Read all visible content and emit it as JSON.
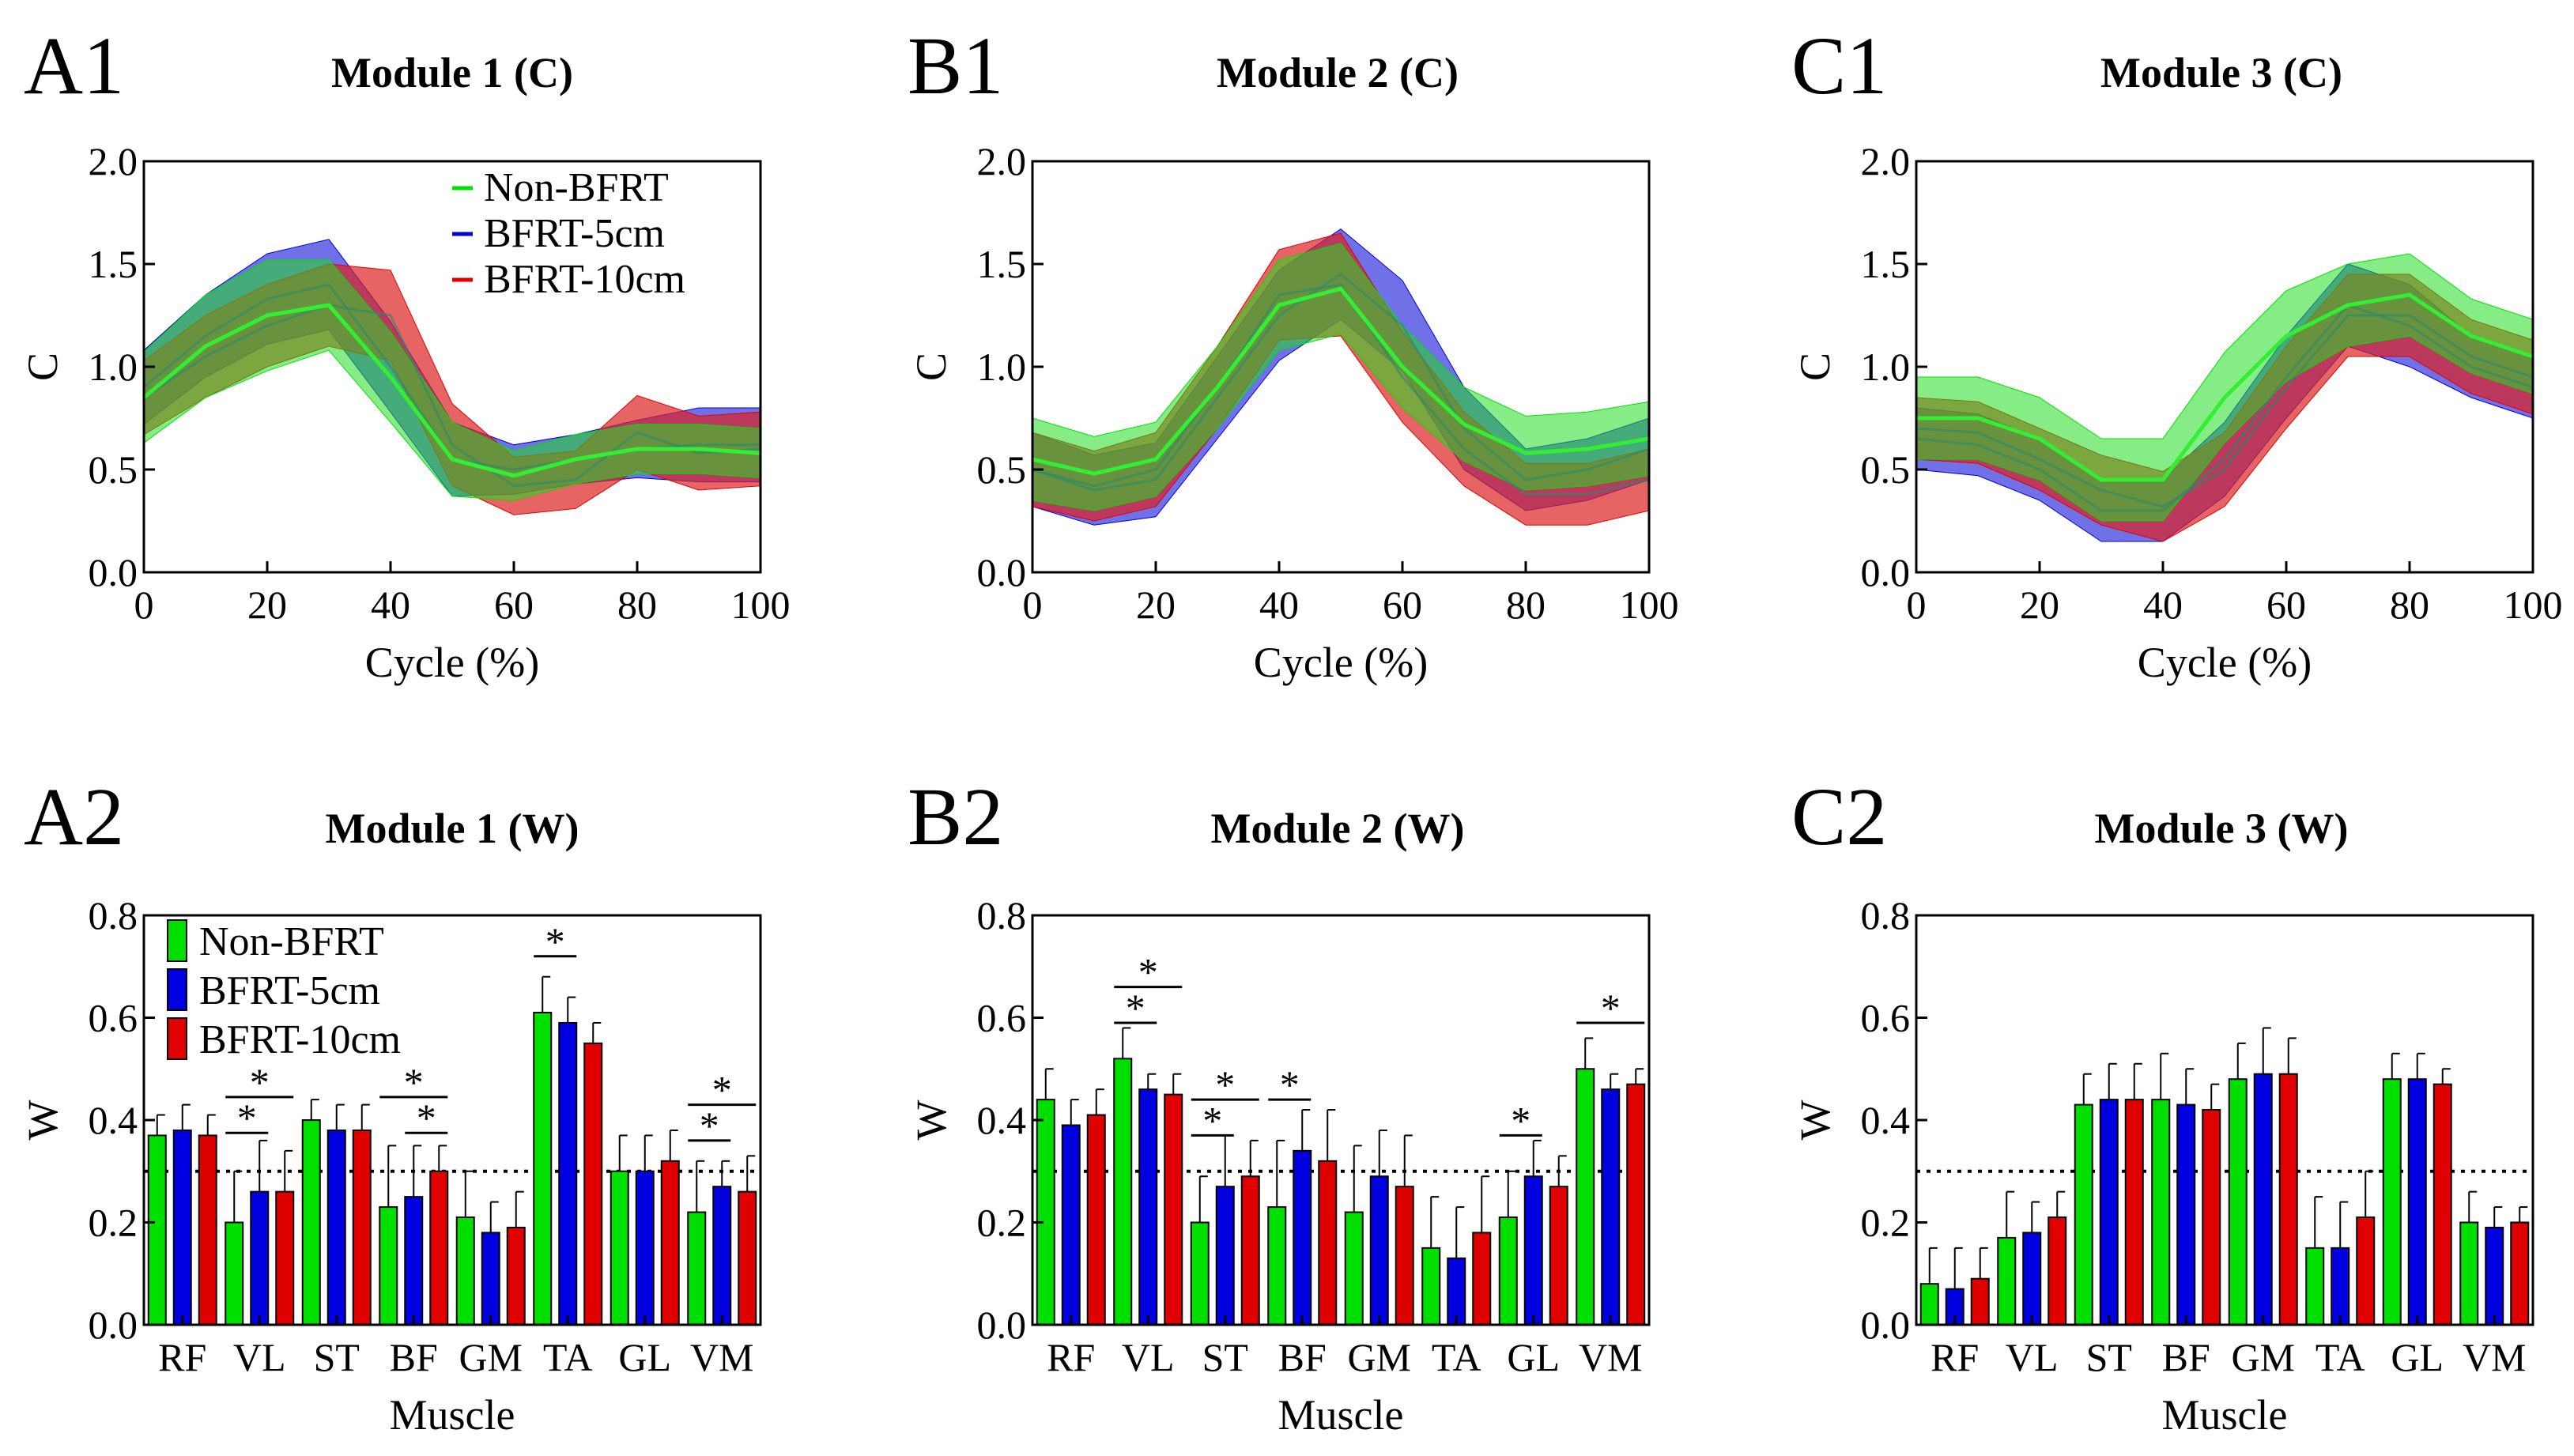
{
  "panels": [
    {
      "id": "A1",
      "letter": "A1",
      "title": "Module 1 (C)",
      "type": "line",
      "xlabel": "Cycle (%)",
      "ylabel": "C",
      "xlim": [
        0,
        100
      ],
      "ylim": [
        0,
        2
      ],
      "xticks": [
        "0",
        "20",
        "40",
        "60",
        "80",
        "100"
      ],
      "yticks": [
        "0.0",
        "0.5",
        "1.0",
        "1.5",
        "2.0"
      ],
      "legend": [
        "Non-BFRT",
        "BFRT-5cm",
        "BFRT-10cm"
      ],
      "x": [
        0,
        10,
        20,
        30,
        40,
        50,
        60,
        70,
        80,
        90,
        100
      ],
      "series": [
        {
          "name": "BFRT-5cm",
          "mean": [
            0.9,
            1.15,
            1.33,
            1.4,
            1.0,
            0.55,
            0.5,
            0.55,
            0.6,
            0.62,
            0.62
          ],
          "sd": [
            0.18,
            0.2,
            0.22,
            0.22,
            0.22,
            0.18,
            0.12,
            0.12,
            0.14,
            0.18,
            0.18
          ]
        },
        {
          "name": "BFRT-10cm",
          "mean": [
            0.85,
            1.05,
            1.2,
            1.3,
            1.25,
            0.62,
            0.42,
            0.45,
            0.68,
            0.58,
            0.6
          ],
          "sd": [
            0.18,
            0.2,
            0.2,
            0.2,
            0.22,
            0.2,
            0.14,
            0.14,
            0.18,
            0.18,
            0.18
          ]
        },
        {
          "name": "Non-BFRT",
          "mean": [
            0.85,
            1.1,
            1.25,
            1.3,
            0.95,
            0.55,
            0.47,
            0.55,
            0.6,
            0.6,
            0.58
          ],
          "sd": [
            0.22,
            0.25,
            0.27,
            0.22,
            0.22,
            0.18,
            0.12,
            0.12,
            0.12,
            0.12,
            0.12
          ]
        }
      ]
    },
    {
      "id": "B1",
      "letter": "B1",
      "title": "Module 2 (C)",
      "type": "line",
      "xlabel": "Cycle (%)",
      "ylabel": "C",
      "xlim": [
        0,
        100
      ],
      "ylim": [
        0,
        2
      ],
      "xticks": [
        "0",
        "20",
        "40",
        "60",
        "80",
        "100"
      ],
      "yticks": [
        "0.0",
        "0.5",
        "1.0",
        "1.5",
        "2.0"
      ],
      "x": [
        0,
        10,
        20,
        30,
        40,
        50,
        60,
        70,
        80,
        90,
        100
      ],
      "series": [
        {
          "name": "BFRT-5cm",
          "mean": [
            0.5,
            0.4,
            0.45,
            0.85,
            1.25,
            1.45,
            1.2,
            0.7,
            0.45,
            0.5,
            0.6
          ],
          "sd": [
            0.18,
            0.17,
            0.18,
            0.2,
            0.22,
            0.22,
            0.22,
            0.2,
            0.15,
            0.15,
            0.15
          ]
        },
        {
          "name": "BFRT-10cm",
          "mean": [
            0.5,
            0.42,
            0.5,
            0.9,
            1.35,
            1.4,
            0.95,
            0.6,
            0.38,
            0.38,
            0.45
          ],
          "sd": [
            0.18,
            0.17,
            0.18,
            0.2,
            0.22,
            0.25,
            0.22,
            0.18,
            0.15,
            0.15,
            0.15
          ]
        },
        {
          "name": "Non-BFRT",
          "mean": [
            0.55,
            0.48,
            0.55,
            0.9,
            1.3,
            1.38,
            1.0,
            0.72,
            0.58,
            0.6,
            0.65
          ],
          "sd": [
            0.2,
            0.18,
            0.18,
            0.2,
            0.22,
            0.22,
            0.2,
            0.18,
            0.18,
            0.18,
            0.18
          ]
        }
      ]
    },
    {
      "id": "C1",
      "letter": "C1",
      "title": "Module 3 (C)",
      "type": "line",
      "xlabel": "Cycle (%)",
      "ylabel": "C",
      "xlim": [
        0,
        100
      ],
      "ylim": [
        0,
        2
      ],
      "xticks": [
        "0",
        "20",
        "40",
        "60",
        "80",
        "100"
      ],
      "yticks": [
        "0.0",
        "0.5",
        "1.0",
        "1.5",
        "2.0"
      ],
      "x": [
        0,
        10,
        20,
        30,
        40,
        50,
        60,
        70,
        80,
        90,
        100
      ],
      "series": [
        {
          "name": "BFRT-5cm",
          "mean": [
            0.65,
            0.62,
            0.5,
            0.3,
            0.3,
            0.55,
            0.95,
            1.3,
            1.2,
            1.0,
            0.9
          ],
          "sd": [
            0.15,
            0.15,
            0.15,
            0.15,
            0.15,
            0.18,
            0.2,
            0.2,
            0.2,
            0.15,
            0.15
          ]
        },
        {
          "name": "BFRT-10cm",
          "mean": [
            0.7,
            0.68,
            0.55,
            0.4,
            0.32,
            0.5,
            0.9,
            1.25,
            1.25,
            1.05,
            0.95
          ],
          "sd": [
            0.15,
            0.15,
            0.15,
            0.17,
            0.17,
            0.18,
            0.2,
            0.2,
            0.2,
            0.18,
            0.18
          ]
        },
        {
          "name": "Non-BFRT",
          "mean": [
            0.75,
            0.75,
            0.65,
            0.45,
            0.45,
            0.85,
            1.15,
            1.3,
            1.35,
            1.15,
            1.05
          ],
          "sd": [
            0.2,
            0.2,
            0.2,
            0.2,
            0.2,
            0.22,
            0.22,
            0.2,
            0.2,
            0.18,
            0.18
          ]
        }
      ]
    },
    {
      "id": "A2",
      "letter": "A2",
      "title": "Module 1 (W)",
      "type": "bar",
      "xlabel": "Muscle",
      "ylabel": "W",
      "ylim": [
        0,
        0.8
      ],
      "threshold": 0.3,
      "yticks": [
        "0.0",
        "0.2",
        "0.4",
        "0.6",
        "0.8"
      ],
      "legend": [
        "Non-BFRT",
        "BFRT-5cm",
        "BFRT-10cm"
      ],
      "categories": [
        "RF",
        "VL",
        "ST",
        "BF",
        "GM",
        "TA",
        "GL",
        "VM"
      ],
      "series": [
        {
          "name": "Non-BFRT",
          "values": [
            0.37,
            0.2,
            0.4,
            0.23,
            0.21,
            0.61,
            0.3,
            0.22
          ],
          "err": [
            0.04,
            0.1,
            0.04,
            0.12,
            0.09,
            0.07,
            0.07,
            0.1
          ]
        },
        {
          "name": "BFRT-5cm",
          "values": [
            0.38,
            0.26,
            0.38,
            0.25,
            0.18,
            0.59,
            0.3,
            0.27
          ],
          "err": [
            0.05,
            0.1,
            0.05,
            0.1,
            0.06,
            0.05,
            0.07,
            0.05
          ]
        },
        {
          "name": "BFRT-10cm",
          "values": [
            0.37,
            0.26,
            0.38,
            0.3,
            0.19,
            0.55,
            0.32,
            0.26
          ],
          "err": [
            0.04,
            0.08,
            0.05,
            0.05,
            0.07,
            0.04,
            0.06,
            0.07
          ]
        }
      ],
      "sig": [
        {
          "cat": 1,
          "from": 0,
          "to": 2,
          "level": 0.445
        },
        {
          "cat": 1,
          "from": 0,
          "to": 1,
          "level": 0.375
        },
        {
          "cat": 3,
          "from": 0,
          "to": 2,
          "level": 0.445
        },
        {
          "cat": 3,
          "from": 1,
          "to": 2,
          "level": 0.375
        },
        {
          "cat": 5,
          "from": 0,
          "to": 1,
          "level": 0.72
        },
        {
          "cat": 7,
          "from": 0,
          "to": 2,
          "level": 0.43
        },
        {
          "cat": 7,
          "from": 0,
          "to": 1,
          "level": 0.36
        }
      ],
      "star": "*"
    },
    {
      "id": "B2",
      "letter": "B2",
      "title": "Module 2 (W)",
      "type": "bar",
      "xlabel": "Muscle",
      "ylabel": "W",
      "ylim": [
        0,
        0.8
      ],
      "threshold": 0.3,
      "yticks": [
        "0.0",
        "0.2",
        "0.4",
        "0.6",
        "0.8"
      ],
      "categories": [
        "RF",
        "VL",
        "ST",
        "BF",
        "GM",
        "TA",
        "GL",
        "VM"
      ],
      "series": [
        {
          "name": "Non-BFRT",
          "values": [
            0.44,
            0.52,
            0.2,
            0.23,
            0.22,
            0.15,
            0.21,
            0.5
          ],
          "err": [
            0.06,
            0.06,
            0.09,
            0.13,
            0.13,
            0.1,
            0.09,
            0.06
          ]
        },
        {
          "name": "BFRT-5cm",
          "values": [
            0.39,
            0.46,
            0.27,
            0.34,
            0.29,
            0.13,
            0.29,
            0.46
          ],
          "err": [
            0.05,
            0.03,
            0.1,
            0.08,
            0.09,
            0.1,
            0.07,
            0.03
          ]
        },
        {
          "name": "BFRT-10cm",
          "values": [
            0.41,
            0.45,
            0.29,
            0.32,
            0.27,
            0.18,
            0.27,
            0.47
          ],
          "err": [
            0.05,
            0.04,
            0.07,
            0.1,
            0.1,
            0.11,
            0.06,
            0.03
          ]
        }
      ],
      "sig": [
        {
          "cat": 1,
          "from": 0,
          "to": 2,
          "level": 0.66
        },
        {
          "cat": 1,
          "from": 0,
          "to": 1,
          "level": 0.59
        },
        {
          "cat": 2,
          "from": 0,
          "to": 2,
          "level": 0.44
        },
        {
          "cat": 2,
          "from": 0,
          "to": 1,
          "level": 0.37
        },
        {
          "cat": 3,
          "from": 0,
          "to": 1,
          "level": 0.44
        },
        {
          "cat": 6,
          "from": 0,
          "to": 1,
          "level": 0.37
        },
        {
          "cat": 7,
          "from": 0,
          "to": 2,
          "level": 0.59
        }
      ],
      "star": "*"
    },
    {
      "id": "C2",
      "letter": "C2",
      "title": "Module 3 (W)",
      "type": "bar",
      "xlabel": "Muscle",
      "ylabel": "W",
      "ylim": [
        0,
        0.8
      ],
      "threshold": 0.3,
      "yticks": [
        "0.0",
        "0.2",
        "0.4",
        "0.6",
        "0.8"
      ],
      "categories": [
        "RF",
        "VL",
        "ST",
        "BF",
        "GM",
        "TA",
        "GL",
        "VM"
      ],
      "series": [
        {
          "name": "Non-BFRT",
          "values": [
            0.08,
            0.17,
            0.43,
            0.44,
            0.48,
            0.15,
            0.48,
            0.2
          ],
          "err": [
            0.07,
            0.09,
            0.06,
            0.09,
            0.07,
            0.1,
            0.05,
            0.06
          ]
        },
        {
          "name": "BFRT-5cm",
          "values": [
            0.07,
            0.18,
            0.44,
            0.43,
            0.49,
            0.15,
            0.48,
            0.19
          ],
          "err": [
            0.08,
            0.06,
            0.07,
            0.07,
            0.09,
            0.09,
            0.05,
            0.04
          ]
        },
        {
          "name": "BFRT-10cm",
          "values": [
            0.09,
            0.21,
            0.44,
            0.42,
            0.49,
            0.21,
            0.47,
            0.2
          ],
          "err": [
            0.06,
            0.05,
            0.07,
            0.05,
            0.07,
            0.09,
            0.03,
            0.03
          ]
        }
      ],
      "sig": [],
      "star": "*"
    }
  ],
  "colors": {
    "Non-BFRT": "#00e000",
    "BFRT-5cm": "#0000e0",
    "BFRT-10cm": "#e00000",
    "Non-BFRT-band": "#22dd22",
    "BFRT-5cm-band": "#3333dd",
    "BFRT-10cm-band": "#dd2222",
    "mean-line": "#33ee33"
  }
}
